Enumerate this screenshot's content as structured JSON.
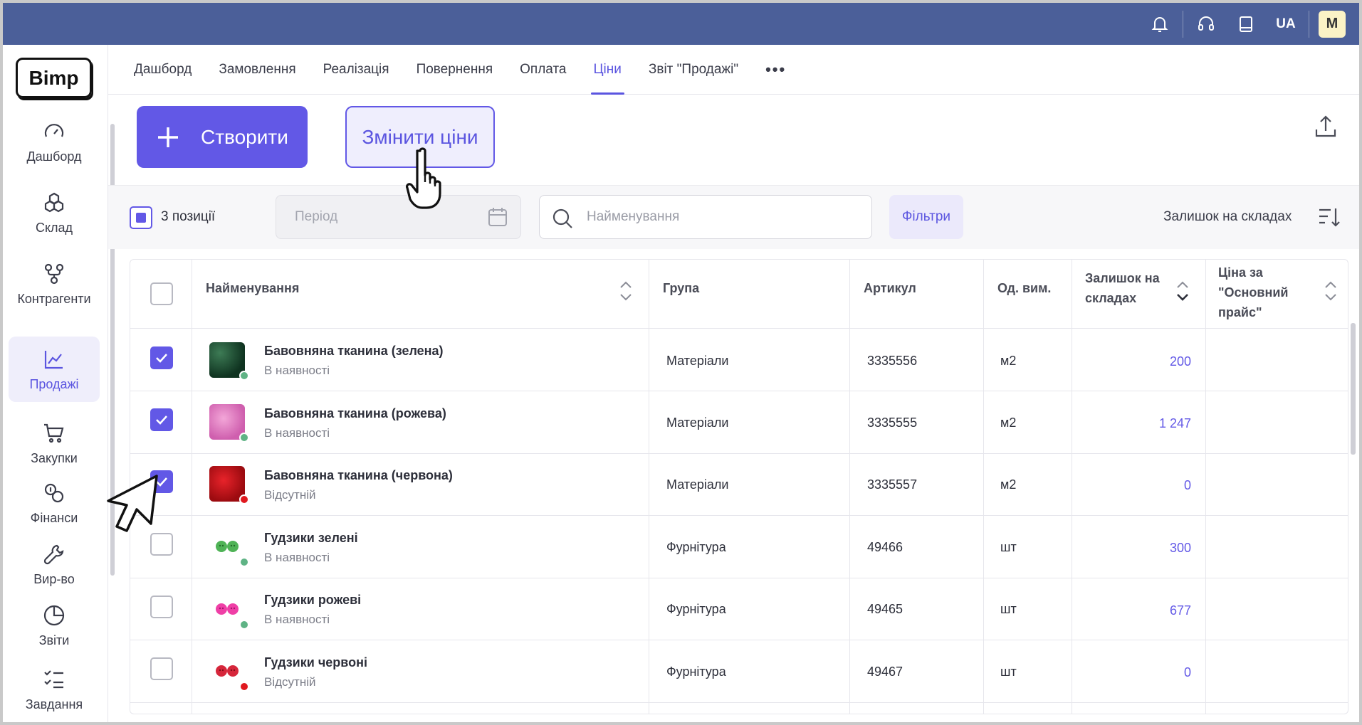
{
  "topbar": {
    "icons": [
      "bell-icon",
      "headset-icon",
      "book-icon"
    ],
    "lang": "UA",
    "avatar_initial": "M",
    "bg_color": "#4b5f99"
  },
  "logo": "Bimp",
  "sidebar": {
    "items": [
      {
        "label": "Дашборд",
        "icon": "gauge-icon"
      },
      {
        "label": "Склад",
        "icon": "boxes-icon"
      },
      {
        "label": "Контрагенти",
        "icon": "network-icon"
      },
      {
        "label": "Продажі",
        "icon": "chart-line-icon",
        "active": true
      },
      {
        "label": "Закупки",
        "icon": "cart-icon"
      },
      {
        "label": "Фінанси",
        "icon": "coins-icon"
      },
      {
        "label": "Вир-во",
        "icon": "wrench-icon"
      },
      {
        "label": "Звіти",
        "icon": "pie-chart-icon"
      },
      {
        "label": "Завдання",
        "icon": "checklist-icon"
      }
    ]
  },
  "tabs": [
    "Дашборд",
    "Замовлення",
    "Реалізація",
    "Повернення",
    "Оплата",
    "Ціни",
    "Звіт \"Продажі\""
  ],
  "active_tab": "Ціни",
  "actions": {
    "create": "Створити",
    "change_prices": "Змінити ціни"
  },
  "toolbar": {
    "selected_count": "3 позиції",
    "period_placeholder": "Період",
    "search_placeholder": "Найменування",
    "filters": "Фільтри",
    "stock_sort": "Залишок на складах"
  },
  "table": {
    "headers": {
      "name": "Найменування",
      "group": "Група",
      "sku": "Артикул",
      "unit": "Од. вим.",
      "stock_l1": "Залишок на",
      "stock_l2": "складах",
      "price_l1": "Ціна за",
      "price_l2": "\"Основний",
      "price_l3": "прайс\""
    },
    "rows": [
      {
        "name": "Бавовняна тканина (зелена)",
        "status": "В наявності",
        "group": "Матеріали",
        "sku": "3335556",
        "unit": "м2",
        "stock": "200",
        "checked": true
      },
      {
        "name": "Бавовняна тканина (рожева)",
        "status": "В наявності",
        "group": "Матеріали",
        "sku": "3335555",
        "unit": "м2",
        "stock": "1 247",
        "checked": true
      },
      {
        "name": "Бавовняна тканина (червона)",
        "status": "Відсутній",
        "group": "Матеріали",
        "sku": "3335557",
        "unit": "м2",
        "stock": "0",
        "checked": true
      },
      {
        "name": "Гудзики зелені",
        "status": "В наявності",
        "group": "Фурнітура",
        "sku": "49466",
        "unit": "шт",
        "stock": "300",
        "checked": false
      },
      {
        "name": "Гудзики рожеві",
        "status": "В наявності",
        "group": "Фурнітура",
        "sku": "49465",
        "unit": "шт",
        "stock": "677",
        "checked": false
      },
      {
        "name": "Гудзики червоні",
        "status": "Відсутній",
        "group": "Фурнітура",
        "sku": "49467",
        "unit": "шт",
        "stock": "0",
        "checked": false
      }
    ]
  },
  "colors": {
    "accent": "#6258e6",
    "in_stock": "#5fb385",
    "out_of_stock": "#e0191f"
  }
}
